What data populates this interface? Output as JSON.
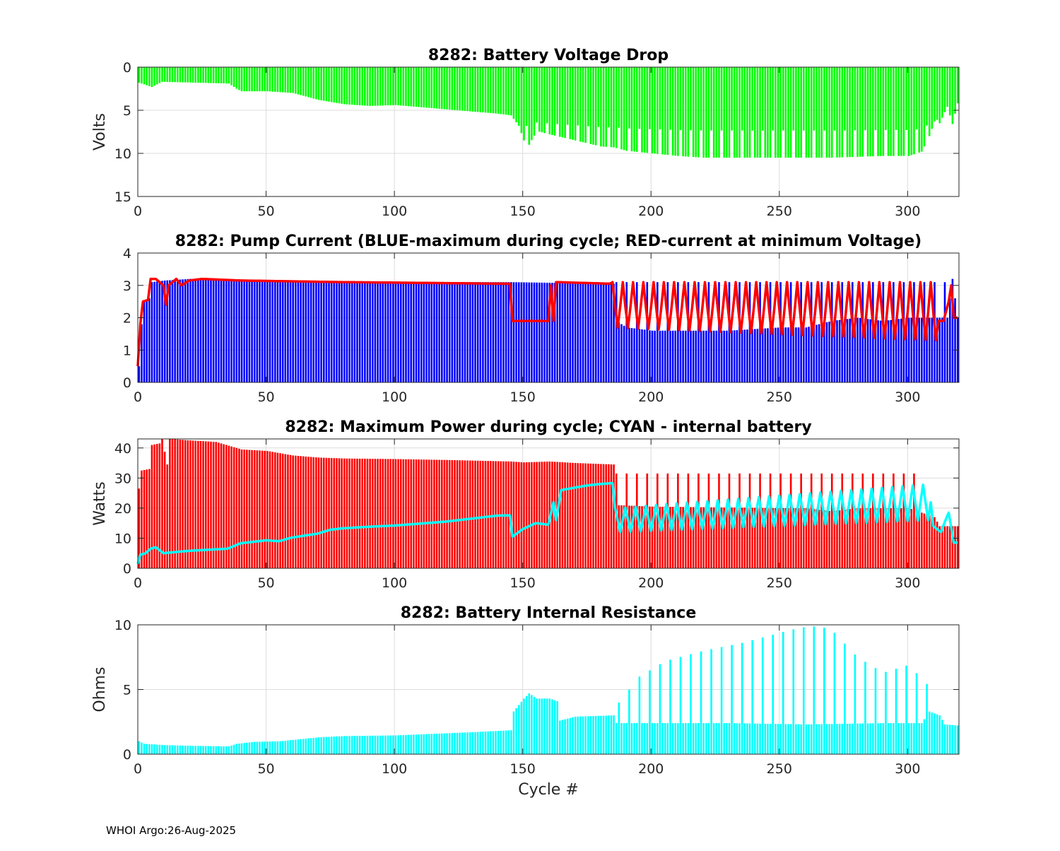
{
  "footer": "WHOI Argo:26-Aug-2025",
  "colors": {
    "green": "#00ff00",
    "blue": "#0000ff",
    "red": "#ff0000",
    "cyan": "#00ffff",
    "grid": "#dcdcdc"
  },
  "chart_data": [
    {
      "type": "bar",
      "title": "8282: Battery Voltage Drop",
      "xlabel": "",
      "ylabel": "Volts",
      "xlim": [
        0,
        320
      ],
      "ylim": [
        0,
        15
      ],
      "y_reversed": true,
      "xticks": [
        0,
        50,
        100,
        150,
        200,
        250,
        300
      ],
      "yticks": [
        0,
        5,
        10,
        15
      ],
      "grid": true,
      "series": [
        {
          "name": "Voltage drop",
          "kind": "bar",
          "color": "#00ff00",
          "description": "one bar per cycle 0-320",
          "anchors": [
            [
              0,
              1.8
            ],
            [
              2,
              2.0
            ],
            [
              5,
              2.3
            ],
            [
              9,
              1.7
            ],
            [
              35,
              1.9
            ],
            [
              38,
              2.5
            ],
            [
              40,
              2.8
            ],
            [
              50,
              2.8
            ],
            [
              60,
              3.0
            ],
            [
              70,
              3.8
            ],
            [
              80,
              4.3
            ],
            [
              90,
              4.5
            ],
            [
              100,
              4.4
            ],
            [
              120,
              4.9
            ],
            [
              140,
              5.4
            ],
            [
              145,
              5.6
            ],
            [
              148,
              6.8
            ],
            [
              150,
              8.5
            ],
            [
              152,
              9.0
            ],
            [
              155,
              7.4
            ],
            [
              160,
              7.8
            ],
            [
              170,
              8.5
            ],
            [
              180,
              9.2
            ],
            [
              185,
              9.3
            ],
            [
              190,
              9.7
            ],
            [
              200,
              10.0
            ],
            [
              210,
              10.3
            ],
            [
              220,
              10.5
            ],
            [
              230,
              10.5
            ],
            [
              240,
              10.5
            ],
            [
              250,
              10.5
            ],
            [
              260,
              10.5
            ],
            [
              270,
              10.5
            ],
            [
              280,
              10.4
            ],
            [
              290,
              10.3
            ],
            [
              300,
              10.3
            ],
            [
              305,
              9.8
            ],
            [
              308,
              8.0
            ],
            [
              310,
              6.3
            ],
            [
              312,
              6.5
            ],
            [
              315,
              4.6
            ],
            [
              317,
              6.6
            ],
            [
              319,
              4.2
            ]
          ],
          "oscillation": {
            "from": 150,
            "to": 312,
            "period": 4,
            "low": 6.0
          }
        }
      ]
    },
    {
      "type": "bar",
      "title": "8282: Pump Current (BLUE-maximum during cycle; RED-current at minimum Voltage)",
      "xlabel": "",
      "ylabel": "",
      "xlim": [
        0,
        320
      ],
      "ylim": [
        0,
        4
      ],
      "xticks": [
        0,
        50,
        100,
        150,
        200,
        250,
        300
      ],
      "yticks": [
        0,
        1,
        2,
        3,
        4
      ],
      "grid": true,
      "series": [
        {
          "name": "Maximum current (BLUE)",
          "kind": "bar",
          "color": "#0000ff",
          "anchors": [
            [
              0,
              0.5
            ],
            [
              1,
              1.8
            ],
            [
              2,
              2.5
            ],
            [
              4,
              2.6
            ],
            [
              5,
              3.1
            ],
            [
              10,
              3.15
            ],
            [
              20,
              3.2
            ],
            [
              50,
              3.15
            ],
            [
              100,
              3.1
            ],
            [
              145,
              3.1
            ],
            [
              185,
              3.05
            ],
            [
              186,
              1.9
            ],
            [
              190,
              1.7
            ],
            [
              200,
              1.6
            ],
            [
              230,
              1.6
            ],
            [
              250,
              1.7
            ],
            [
              260,
              1.7
            ],
            [
              270,
              1.9
            ],
            [
              280,
              2.0
            ],
            [
              290,
              1.9
            ],
            [
              300,
              2.0
            ],
            [
              315,
              2.0
            ],
            [
              317,
              3.2
            ],
            [
              319,
              2.0
            ]
          ],
          "spikes": {
            "from": 186,
            "to": 316,
            "period": 4,
            "high": 3.1
          }
        },
        {
          "name": "Current at minimum Voltage (RED)",
          "kind": "line",
          "color": "#ff0000",
          "anchors": [
            [
              0,
              0.5
            ],
            [
              1,
              1.8
            ],
            [
              2,
              2.5
            ],
            [
              4,
              2.55
            ],
            [
              5,
              3.2
            ],
            [
              7,
              3.2
            ],
            [
              10,
              3.0
            ],
            [
              11,
              2.4
            ],
            [
              12,
              3.0
            ],
            [
              15,
              3.2
            ],
            [
              17,
              3.0
            ],
            [
              20,
              3.15
            ],
            [
              25,
              3.2
            ],
            [
              40,
              3.15
            ],
            [
              80,
              3.1
            ],
            [
              145,
              3.05
            ],
            [
              146,
              1.9
            ],
            [
              160,
              1.9
            ],
            [
              161,
              3.0
            ],
            [
              162,
              1.9
            ],
            [
              163,
              3.1
            ],
            [
              185,
              3.05
            ]
          ],
          "oscillation": {
            "from": 185,
            "to": 312,
            "period": 4,
            "high": 3.1,
            "low_start": 1.7,
            "low_end": 1.3
          },
          "tail": [
            [
              312,
              1.9
            ],
            [
              314,
              1.9
            ],
            [
              316,
              2.5
            ],
            [
              317,
              3.0
            ],
            [
              318,
              2.0
            ],
            [
              320,
              2.0
            ]
          ]
        }
      ]
    },
    {
      "type": "bar",
      "title": "8282: Maximum Power during cycle; CYAN - internal battery",
      "xlabel": "",
      "ylabel": "Watts",
      "xlim": [
        0,
        320
      ],
      "ylim": [
        0,
        43
      ],
      "xticks": [
        0,
        50,
        100,
        150,
        200,
        250,
        300
      ],
      "yticks": [
        0,
        10,
        20,
        30,
        40
      ],
      "grid": true,
      "series": [
        {
          "name": "Maximum power",
          "kind": "bar",
          "color": "#ff0000",
          "anchors": [
            [
              0,
              26.5
            ],
            [
              1,
              32.5
            ],
            [
              4,
              33
            ],
            [
              5,
              41
            ],
            [
              8,
              41.5
            ],
            [
              9,
              43
            ],
            [
              11,
              34.5
            ],
            [
              12,
              43
            ],
            [
              20,
              42.5
            ],
            [
              30,
              42
            ],
            [
              40,
              39.5
            ],
            [
              50,
              39
            ],
            [
              60,
              37.5
            ],
            [
              70,
              36.8
            ],
            [
              80,
              36.5
            ],
            [
              100,
              36.3
            ],
            [
              120,
              36
            ],
            [
              145,
              35.5
            ],
            [
              150,
              35.2
            ],
            [
              160,
              35.5
            ],
            [
              170,
              35
            ],
            [
              185,
              34.5
            ],
            [
              186,
              21
            ],
            [
              200,
              20.5
            ],
            [
              250,
              20
            ],
            [
              260,
              20
            ],
            [
              270,
              19
            ],
            [
              280,
              20
            ],
            [
              300,
              20
            ],
            [
              310,
              17
            ],
            [
              312,
              14
            ],
            [
              320,
              14
            ]
          ],
          "spikes": {
            "from": 186,
            "to": 304,
            "period": 4,
            "high": 31.5
          }
        },
        {
          "name": "Internal battery (CYAN)",
          "kind": "line",
          "color": "#00ffff",
          "anchors": [
            [
              0,
              1.5
            ],
            [
              1,
              4.5
            ],
            [
              3,
              5
            ],
            [
              5,
              6.5
            ],
            [
              7,
              7
            ],
            [
              10,
              5
            ],
            [
              12,
              5.2
            ],
            [
              20,
              5.8
            ],
            [
              35,
              6.5
            ],
            [
              40,
              8.3
            ],
            [
              50,
              9.3
            ],
            [
              55,
              9.0
            ],
            [
              60,
              10.2
            ],
            [
              70,
              11.5
            ],
            [
              75,
              12.8
            ],
            [
              80,
              13.3
            ],
            [
              90,
              13.8
            ],
            [
              100,
              14.2
            ],
            [
              120,
              15.5
            ],
            [
              140,
              17.5
            ],
            [
              145,
              17.6
            ],
            [
              146,
              10.5
            ],
            [
              150,
              13
            ],
            [
              155,
              15
            ],
            [
              160,
              14.5
            ],
            [
              162,
              22
            ],
            [
              163,
              16
            ],
            [
              165,
              26
            ],
            [
              175,
              27.5
            ],
            [
              180,
              28
            ],
            [
              185,
              28.3
            ],
            [
              186,
              13
            ]
          ],
          "oscillation": {
            "from": 186,
            "to": 310,
            "period": 4,
            "high_start": 20,
            "high_end": 28,
            "low_start": 12,
            "low_end": 16
          },
          "tail": [
            [
              310,
              14
            ],
            [
              313,
              12
            ],
            [
              315,
              16.5
            ],
            [
              316,
              18.5
            ],
            [
              318,
              8.5
            ],
            [
              320,
              8.5
            ]
          ]
        }
      ]
    },
    {
      "type": "bar",
      "title": "8282: Battery Internal Resistance",
      "xlabel": "Cycle #",
      "ylabel": "Ohms",
      "xlim": [
        0,
        320
      ],
      "ylim": [
        0,
        10
      ],
      "xticks": [
        0,
        50,
        100,
        150,
        200,
        250,
        300
      ],
      "yticks": [
        0,
        5,
        10
      ],
      "grid": true,
      "series": [
        {
          "name": "Internal resistance",
          "kind": "bar",
          "color": "#00ffff",
          "anchors": [
            [
              0,
              1.0
            ],
            [
              2,
              0.8
            ],
            [
              10,
              0.7
            ],
            [
              20,
              0.65
            ],
            [
              35,
              0.6
            ],
            [
              38,
              0.8
            ],
            [
              45,
              0.95
            ],
            [
              55,
              1.0
            ],
            [
              70,
              1.3
            ],
            [
              80,
              1.4
            ],
            [
              100,
              1.45
            ],
            [
              130,
              1.7
            ],
            [
              145,
              1.85
            ],
            [
              146,
              3.3
            ],
            [
              150,
              4.3
            ],
            [
              152,
              4.7
            ],
            [
              155,
              4.3
            ],
            [
              160,
              4.3
            ],
            [
              163,
              4.1
            ],
            [
              164,
              2.6
            ],
            [
              170,
              2.9
            ],
            [
              185,
              3.0
            ],
            [
              186,
              2.4
            ],
            [
              200,
              2.4
            ],
            [
              230,
              2.4
            ],
            [
              260,
              2.3
            ],
            [
              290,
              2.4
            ],
            [
              305,
              2.4
            ],
            [
              308,
              3.3
            ],
            [
              312,
              3.0
            ],
            [
              314,
              2.3
            ],
            [
              320,
              2.2
            ]
          ],
          "spikes": {
            "from": 187,
            "to": 309,
            "period": 4,
            "peaks": [
              [
                187,
                4.0
              ],
              [
                195,
                6.0
              ],
              [
                205,
                7.2
              ],
              [
                220,
                8.0
              ],
              [
                235,
                8.6
              ],
              [
                250,
                9.4
              ],
              [
                258,
                9.8
              ],
              [
                265,
                9.9
              ],
              [
                270,
                9.6
              ],
              [
                280,
                7.5
              ],
              [
                290,
                6.3
              ],
              [
                300,
                6.9
              ],
              [
                309,
                5.0
              ]
            ]
          }
        }
      ]
    }
  ]
}
